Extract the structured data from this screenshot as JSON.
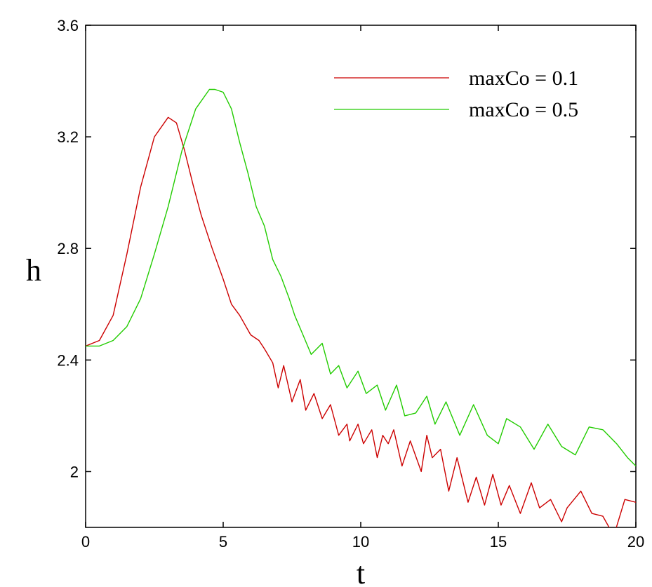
{
  "chart_data": {
    "type": "line",
    "xlabel": "t",
    "ylabel": "h",
    "xlim": [
      0,
      20
    ],
    "ylim": [
      1.8,
      3.6
    ],
    "x_ticks": [
      0,
      5,
      10,
      15,
      20
    ],
    "y_ticks": [
      2.0,
      2.4,
      2.8,
      3.2,
      3.6
    ],
    "x_tick_labels": [
      "0",
      "5",
      "10",
      "15",
      "20"
    ],
    "y_tick_labels": [
      "2",
      "2.4",
      "2.8",
      "3.2",
      "3.6"
    ],
    "grid": false,
    "legend_position": "top-right",
    "series": [
      {
        "name": "maxCo = 0.1",
        "color": "#cc0000",
        "x": [
          0,
          0.5,
          1.0,
          1.5,
          2.0,
          2.5,
          3.0,
          3.3,
          3.6,
          3.9,
          4.2,
          4.6,
          5.0,
          5.3,
          5.6,
          6.0,
          6.3,
          6.5,
          6.8,
          7.0,
          7.2,
          7.5,
          7.8,
          8.0,
          8.3,
          8.6,
          8.9,
          9.2,
          9.5,
          9.6,
          9.9,
          10.1,
          10.4,
          10.6,
          10.8,
          11.0,
          11.2,
          11.5,
          11.8,
          12.2,
          12.4,
          12.6,
          12.9,
          13.2,
          13.5,
          13.9,
          14.2,
          14.5,
          14.8,
          15.1,
          15.4,
          15.8,
          16.2,
          16.5,
          16.9,
          17.3,
          17.5,
          18.0,
          18.4,
          18.8,
          19.2,
          19.6,
          20.0
        ],
        "y": [
          2.45,
          2.47,
          2.56,
          2.78,
          3.02,
          3.2,
          3.27,
          3.25,
          3.15,
          3.03,
          2.92,
          2.8,
          2.69,
          2.6,
          2.56,
          2.49,
          2.47,
          2.44,
          2.39,
          2.3,
          2.38,
          2.25,
          2.33,
          2.22,
          2.28,
          2.19,
          2.24,
          2.13,
          2.17,
          2.11,
          2.17,
          2.1,
          2.15,
          2.05,
          2.13,
          2.1,
          2.15,
          2.02,
          2.11,
          2.0,
          2.13,
          2.05,
          2.08,
          1.93,
          2.05,
          1.89,
          1.98,
          1.88,
          1.99,
          1.88,
          1.95,
          1.85,
          1.96,
          1.87,
          1.9,
          1.82,
          1.87,
          1.93,
          1.85,
          1.84,
          1.77,
          1.9,
          1.89
        ]
      },
      {
        "name": "maxCo = 0.5",
        "color": "#22cc00",
        "x": [
          0,
          0.5,
          1.0,
          1.5,
          2.0,
          2.5,
          3.0,
          3.5,
          4.0,
          4.5,
          4.7,
          5.0,
          5.3,
          5.6,
          5.9,
          6.2,
          6.5,
          6.8,
          7.1,
          7.4,
          7.6,
          7.9,
          8.2,
          8.6,
          8.9,
          9.2,
          9.5,
          9.9,
          10.2,
          10.6,
          10.9,
          11.3,
          11.6,
          12.0,
          12.4,
          12.7,
          13.1,
          13.6,
          14.1,
          14.6,
          15.0,
          15.3,
          15.8,
          16.3,
          16.8,
          17.3,
          17.8,
          18.3,
          18.8,
          19.3,
          19.7,
          20.0
        ],
        "y": [
          2.45,
          2.45,
          2.47,
          2.52,
          2.62,
          2.78,
          2.95,
          3.15,
          3.3,
          3.37,
          3.37,
          3.36,
          3.3,
          3.18,
          3.07,
          2.95,
          2.88,
          2.76,
          2.7,
          2.62,
          2.56,
          2.49,
          2.42,
          2.46,
          2.35,
          2.38,
          2.3,
          2.36,
          2.28,
          2.31,
          2.22,
          2.31,
          2.2,
          2.21,
          2.27,
          2.17,
          2.25,
          2.13,
          2.24,
          2.13,
          2.1,
          2.19,
          2.16,
          2.08,
          2.17,
          2.09,
          2.06,
          2.16,
          2.15,
          2.1,
          2.05,
          2.02
        ]
      }
    ]
  }
}
